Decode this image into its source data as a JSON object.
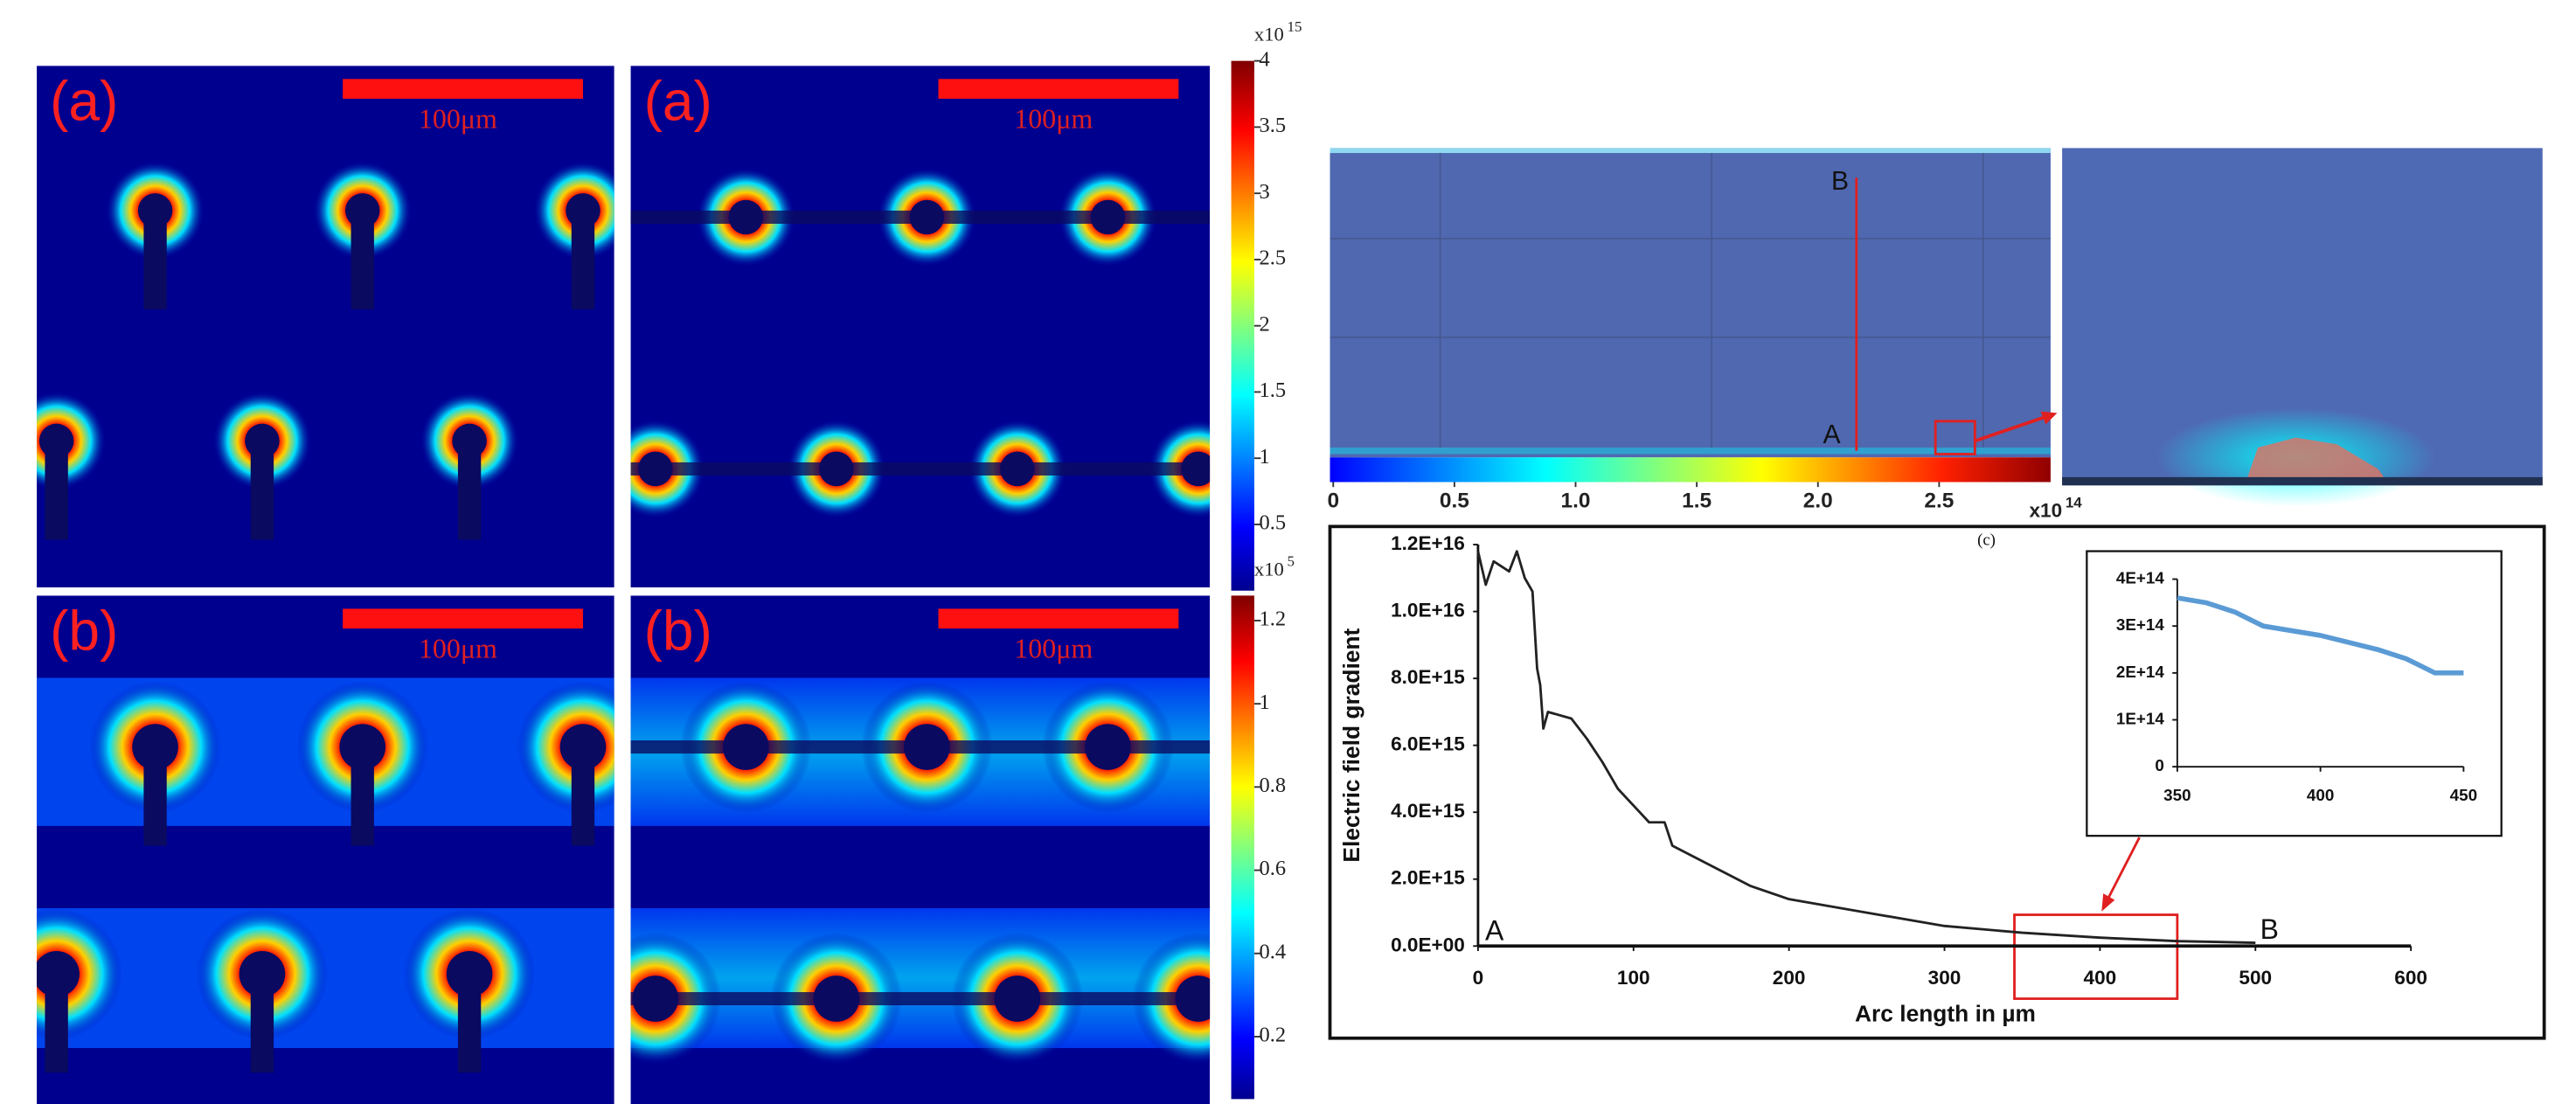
{
  "panels": [
    {
      "label": "(a)",
      "scale_bar": "100μm"
    },
    {
      "label": "(a)",
      "scale_bar": "100μm"
    },
    {
      "label": "(b)",
      "scale_bar": "100μm"
    },
    {
      "label": "(b)",
      "scale_bar": "100μm"
    }
  ],
  "colorbars": [
    {
      "multiplier": "x10",
      "exponent": "15",
      "lim": [
        0,
        4
      ],
      "ticks": [
        0.5,
        1,
        1.5,
        2,
        2.5,
        3,
        3.5,
        4
      ]
    },
    {
      "multiplier": "x10",
      "exponent": "5",
      "lim": [
        0.05,
        1.26
      ],
      "ticks": [
        0.2,
        0.4,
        0.6,
        0.8,
        1,
        1.2
      ]
    },
    {
      "multiplier": "x10",
      "exponent": "14",
      "lim": [
        0,
        2.96
      ],
      "ticks": [
        0,
        0.5,
        {
          "value": 1,
          "label": "1.0"
        },
        1.5,
        {
          "value": 2,
          "label": "2.0"
        },
        2.5
      ]
    }
  ],
  "simulation": {
    "point_a": "A",
    "point_b": "B"
  },
  "chart_data": [
    {
      "type": "line",
      "label": "(c)",
      "xlabel": "Arc length in µm",
      "ylabel": "Electric field gradient",
      "start_label": "A",
      "end_label": "B",
      "color": "#222222",
      "x": [
        0,
        5,
        10,
        20,
        25,
        30,
        35,
        38,
        40,
        42,
        45,
        60,
        70,
        80,
        90,
        100,
        110,
        120,
        125,
        150,
        175,
        200,
        225,
        250,
        300,
        350,
        400,
        450,
        500
      ],
      "values": [
        1.18e+16,
        1.08e+16,
        1.15e+16,
        1.12e+16,
        1.18e+16,
        1.1e+16,
        1.06e+16,
        8300000000000000.0,
        7800000000000000.0,
        6500000000000000.0,
        7000000000000000.0,
        6800000000000000.0,
        6200000000000000.0,
        5500000000000000.0,
        4700000000000000.0,
        4200000000000000.0,
        3700000000000000.0,
        3700000000000000.0,
        3000000000000000.0,
        2400000000000000.0,
        1800000000000000.0,
        1400000000000000.0,
        1200000000000000.0,
        1000000000000000.0,
        600000000000000.0,
        400000000000000.0,
        250000000000000.0,
        150000000000000.0,
        100000000000000.0
      ],
      "xlim": [
        0,
        600
      ],
      "ylim": [
        0,
        1.2e+16
      ],
      "xticks": [
        0,
        100,
        200,
        300,
        400,
        500,
        600
      ],
      "yticks": [
        {
          "value": 0,
          "label": "0.0E+00"
        },
        {
          "value": 2000000000000000.0,
          "label": "2.0E+15"
        },
        {
          "value": 4000000000000000.0,
          "label": "4.0E+15"
        },
        {
          "value": 6000000000000000.0,
          "label": "6.0E+15"
        },
        {
          "value": 8000000000000000.0,
          "label": "8.0E+15"
        },
        {
          "value": 1e+16,
          "label": "1.0E+16"
        },
        {
          "value": 1.2e+16,
          "label": "1.2E+16"
        }
      ]
    },
    {
      "type": "line",
      "color": "#5b9bd5",
      "x": [
        350,
        360,
        370,
        380,
        400,
        420,
        430,
        440,
        450
      ],
      "values": [
        360000000000000.0,
        350000000000000.0,
        330000000000000.0,
        300000000000000.0,
        280000000000000.0,
        250000000000000.0,
        230000000000000.0,
        200000000000000.0,
        200000000000000.0
      ],
      "xlim": [
        350,
        450
      ],
      "ylim": [
        0,
        400000000000000.0
      ],
      "xticks": [
        350,
        400,
        450
      ],
      "yticks": [
        0,
        {
          "value": 100000000000000.0,
          "label": "1E+14"
        },
        {
          "value": 200000000000000.0,
          "label": "2E+14"
        },
        {
          "value": 300000000000000.0,
          "label": "3E+14"
        },
        {
          "value": 400000000000000.0,
          "label": "4E+14"
        }
      ]
    }
  ]
}
